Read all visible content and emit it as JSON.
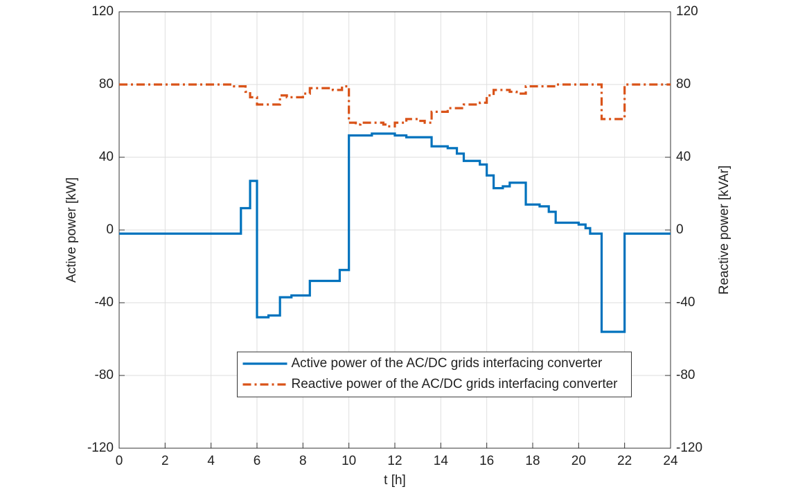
{
  "chart_data": {
    "type": "step",
    "xlabel": "t [h]",
    "ylabel": "Active power [kW]",
    "y2label": "Reactive power [kVAr]",
    "xlim": [
      0,
      24
    ],
    "xticks": [
      0,
      2,
      4,
      6,
      8,
      10,
      12,
      14,
      16,
      18,
      20,
      22,
      24
    ],
    "ylim": [
      -120,
      120
    ],
    "yticks": [
      -120,
      -80,
      -40,
      0,
      40,
      80,
      120
    ],
    "y2lim": [
      -120,
      120
    ],
    "y2ticks": [
      -120,
      -80,
      -40,
      0,
      40,
      80,
      120
    ],
    "grid": true,
    "legend": "lower center",
    "series": [
      {
        "name": "Active power of the AC/DC grids interfacing converter",
        "color": "#0072bd",
        "style": "solid",
        "x": [
          0,
          5.3,
          5.7,
          6,
          6.5,
          7,
          7.5,
          8.3,
          9.6,
          10,
          11,
          12,
          12.5,
          13.6,
          14.3,
          14.7,
          15,
          15.7,
          16,
          16.3,
          16.7,
          17,
          17.7,
          18.3,
          18.7,
          19,
          20,
          20.3,
          20.5,
          21,
          22,
          24
        ],
        "values": [
          -2,
          12,
          27,
          -48,
          -47,
          -37,
          -36,
          -28,
          -22,
          52,
          53,
          52,
          51,
          46,
          45,
          42,
          38,
          36,
          30,
          23,
          24,
          26,
          14,
          13,
          10,
          4,
          3,
          1,
          -2,
          -56,
          -2,
          -2
        ]
      },
      {
        "name": "Reactive power of the AC/DC grids interfacing converter",
        "color": "#d95319",
        "style": "dashdot",
        "axis": "y2",
        "x": [
          0,
          5,
          5.5,
          5.7,
          6,
          7,
          7.3,
          8,
          8.3,
          9.3,
          9.7,
          10,
          10.3,
          10.5,
          11.5,
          11.7,
          12,
          12.5,
          13,
          13.3,
          13.6,
          14.3,
          15,
          15.7,
          16,
          16.3,
          17,
          17.3,
          17.7,
          18.3,
          19,
          21,
          22,
          24
        ],
        "values": [
          80,
          79,
          76,
          73,
          69,
          74,
          73,
          75,
          78,
          77,
          79,
          59,
          58,
          59,
          58,
          57,
          59,
          61,
          60,
          59,
          65,
          67,
          69,
          70,
          74,
          77,
          76,
          75,
          79,
          79,
          80,
          61,
          80,
          80
        ]
      }
    ]
  }
}
